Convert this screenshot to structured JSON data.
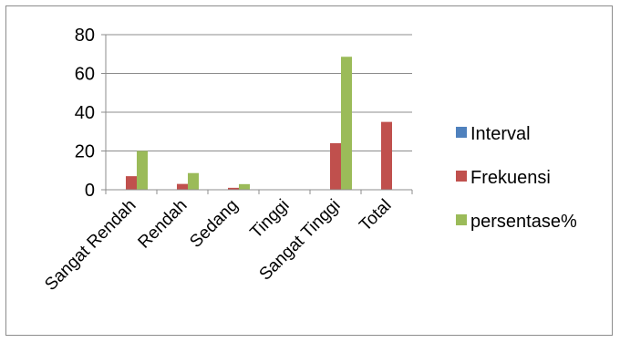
{
  "chart_data": {
    "type": "bar",
    "title": "",
    "xlabel": "",
    "ylabel": "",
    "categories": [
      "Sangat Rendah",
      "Rendah",
      "Sedang",
      "Tinggi",
      "Sangat Tinggi",
      "Total"
    ],
    "series": [
      {
        "name": "Interval",
        "color": "#4F81BD",
        "values": [
          0,
          0,
          0,
          0,
          0,
          0
        ]
      },
      {
        "name": "Frekuensi",
        "color": "#C0504D",
        "values": [
          7,
          3,
          1,
          0,
          24,
          35
        ]
      },
      {
        "name": "persentase%",
        "color": "#9BBB59",
        "values": [
          20,
          8.6,
          2.9,
          0,
          68.6,
          0
        ]
      }
    ],
    "ylim": [
      0,
      80
    ],
    "yticks": [
      0,
      20,
      40,
      60,
      80
    ],
    "grid": true,
    "legend": "right"
  }
}
